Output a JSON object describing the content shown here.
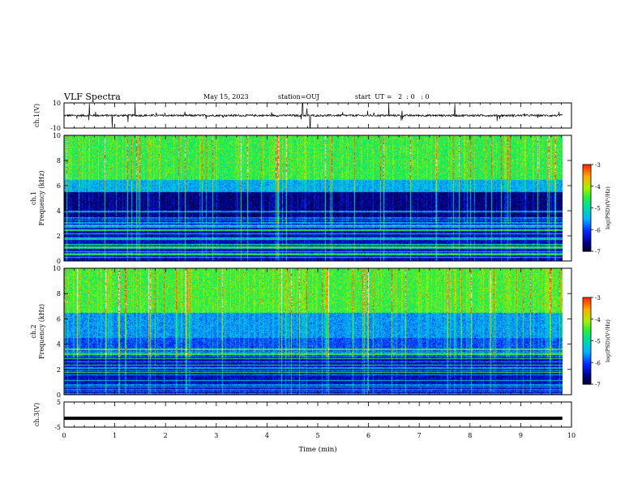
{
  "header": {
    "title": "VLF Spectra",
    "date": "May 15, 2023",
    "station": "station=OUJ",
    "start_ut": "start  UT =   2  : 0   : 0"
  },
  "colors": {
    "spectrogram_scale": [
      "#000033",
      "#0000a0",
      "#0040ff",
      "#00c0ff",
      "#20e0a0",
      "#40f040",
      "#c0f000",
      "#ffa000",
      "#ff2000",
      "#ffffff"
    ],
    "trace": "#000000"
  },
  "chart_data": [
    {
      "type": "line",
      "ylabel": "ch.1(V)",
      "ylim": [
        -10,
        10
      ],
      "y_ticks": [
        "10",
        "-10"
      ],
      "series": [
        {
          "baseline": 0,
          "noise_amplitude": 1,
          "spike_times_min": [
            0.5,
            0.95,
            1.4,
            4.7,
            4.85,
            6.4,
            7.7
          ]
        }
      ]
    },
    {
      "type": "heatmap",
      "ylabel": "ch.1\nFrequency (kHz)",
      "ylim": [
        0,
        10
      ],
      "y_ticks": [
        "0",
        "2",
        "4",
        "6",
        "8",
        "10"
      ],
      "colorbar": {
        "label": "log(PSD)(V²/Hz)",
        "range": [
          -7,
          -3
        ],
        "ticks": [
          "-3",
          "-4",
          "-5",
          "-6",
          "-7"
        ]
      }
    },
    {
      "type": "heatmap",
      "ylabel": "ch.2\nFrequency (kHz)",
      "ylim": [
        0,
        10
      ],
      "y_ticks": [
        "0",
        "2",
        "4",
        "6",
        "8",
        "10"
      ],
      "colorbar": {
        "label": "log(PSD)(V²/Hz)",
        "range": [
          -7,
          -3
        ],
        "ticks": [
          "-3",
          "-4",
          "-5",
          "-6",
          "-7"
        ]
      }
    },
    {
      "type": "line",
      "ylabel": "ch.3(V)",
      "ylim": [
        -5,
        5
      ],
      "y_ticks": [
        "5",
        "-5"
      ],
      "series": [
        {
          "values_constant": -1.5
        }
      ],
      "xlabel": "Time (min)",
      "xlim": [
        0,
        10
      ],
      "x_ticks": [
        "0",
        "1",
        "2",
        "3",
        "4",
        "5",
        "6",
        "7",
        "8",
        "9",
        "10"
      ],
      "data_end_min": 9.82
    }
  ]
}
